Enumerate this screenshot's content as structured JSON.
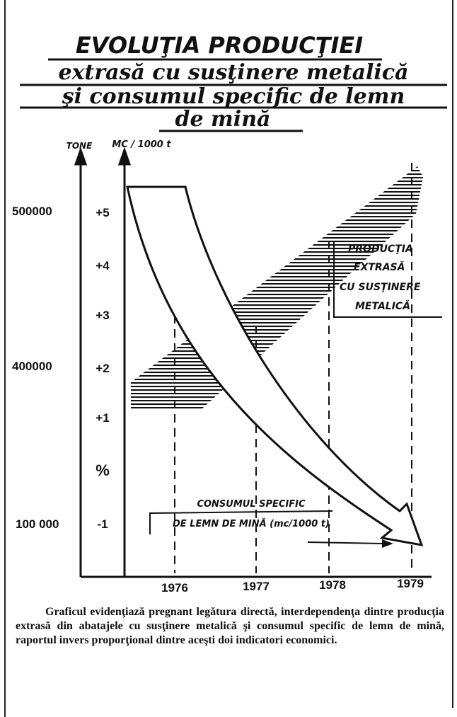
{
  "header": {
    "title": "EVOLUŢIA PRODUCŢIEI",
    "subtitle": [
      "extrasă cu susţinere metalică",
      "şi consumul specific de lemn",
      "de mină"
    ]
  },
  "axes": {
    "left_label": "TONE",
    "right_label": "MC / 1000 t",
    "left_ticks": [
      "500000",
      "400000",
      "100 000"
    ],
    "right_ticks": [
      "+5",
      "+4",
      "+3",
      "+2",
      "+1",
      "%",
      "-1"
    ],
    "years": [
      "1976",
      "1977",
      "1978",
      "1979"
    ]
  },
  "annotations": {
    "production": [
      "PRODUCŢIA",
      "EXTRASĂ",
      "CU SUSŢINERE",
      "METALICĂ"
    ],
    "consumption": [
      "CONSUMUL SPECIFIC",
      "DE LEMN DE MINĂ (mc/1000 t)"
    ]
  },
  "caption": "Graficul evidenţiază pregnant legătura directă, interdependenţa dintre producţia extrasă din abatajele cu susţinere metalică şi consumul specific de lemn de mină, raportul invers proporţional dintre aceşti doi indicatori economici."
}
